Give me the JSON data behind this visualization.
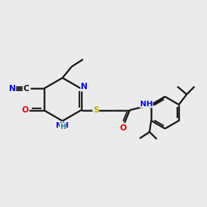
{
  "bg_color": "#ebebeb",
  "bond_color": "#1a1a1a",
  "bond_width": 1.8,
  "atom_colors": {
    "N": "#0000ee",
    "O": "#ee0000",
    "S": "#bbaa00",
    "C": "#1a1a1a",
    "H": "#008888"
  },
  "font_size": 8.5,
  "fig_size": [
    3.0,
    3.0
  ],
  "dpi": 100
}
